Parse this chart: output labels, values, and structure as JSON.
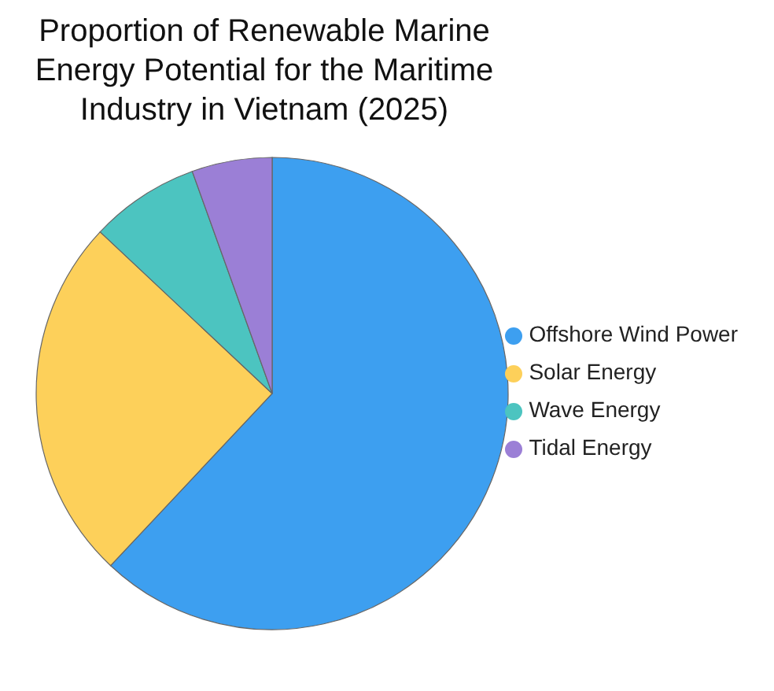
{
  "chart_data": {
    "type": "pie",
    "title": "Proportion of Renewable Marine Energy Potential for the Maritime Industry in Vietnam (2025)",
    "categories": [
      "Offshore Wind Power",
      "Solar Energy",
      "Wave Energy",
      "Tidal Energy"
    ],
    "values": [
      62,
      25,
      7.5,
      5.5
    ],
    "colors": [
      "#3d9ff0",
      "#fdd05a",
      "#4cc4c0",
      "#9b7fd6"
    ],
    "legend": "right"
  }
}
